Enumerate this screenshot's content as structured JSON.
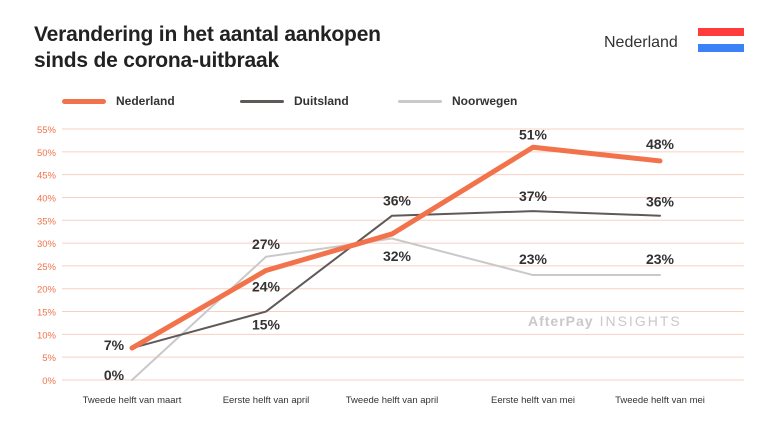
{
  "header": {
    "title_line1": "Verandering in het aantal aankopen",
    "title_line2": "sinds de corona-uitbraak",
    "country": "Nederland"
  },
  "flag_colors": [
    "#ff3b3b",
    "#ffffff",
    "#3b82f6"
  ],
  "watermark": {
    "brand": "AfterPay",
    "suffix": "INSIGHTS"
  },
  "chart_data": {
    "type": "line",
    "title": "Verandering in het aantal aankopen sinds de corona-uitbraak",
    "categories": [
      "Tweede helft van maart",
      "Eerste helft van april",
      "Tweede helft van april",
      "Eerste helft van mei",
      "Tweede helft van mei"
    ],
    "yticks": [
      "0%",
      "5%",
      "10%",
      "15%",
      "20%",
      "25%",
      "30%",
      "35%",
      "40%",
      "45%",
      "50%",
      "55%"
    ],
    "ylim": [
      0,
      55
    ],
    "grid": true,
    "legend_position": "top-left",
    "series": [
      {
        "name": "Nederland",
        "color": "#f2724b",
        "values": [
          7,
          24,
          32,
          51,
          48
        ],
        "labels": [
          "7%",
          "24%",
          "32%",
          "51%",
          "48%"
        ]
      },
      {
        "name": "Duitsland",
        "color": "#5f5a58",
        "values": [
          7,
          15,
          36,
          37,
          36
        ],
        "labels": [
          "",
          "15%",
          "36%",
          "37%",
          "36%"
        ]
      },
      {
        "name": "Noorwegen",
        "color": "#c9c9c9",
        "values": [
          0,
          27,
          31,
          23,
          23
        ],
        "labels": [
          "0%",
          "27%",
          "",
          "23%",
          "23%"
        ]
      }
    ]
  }
}
